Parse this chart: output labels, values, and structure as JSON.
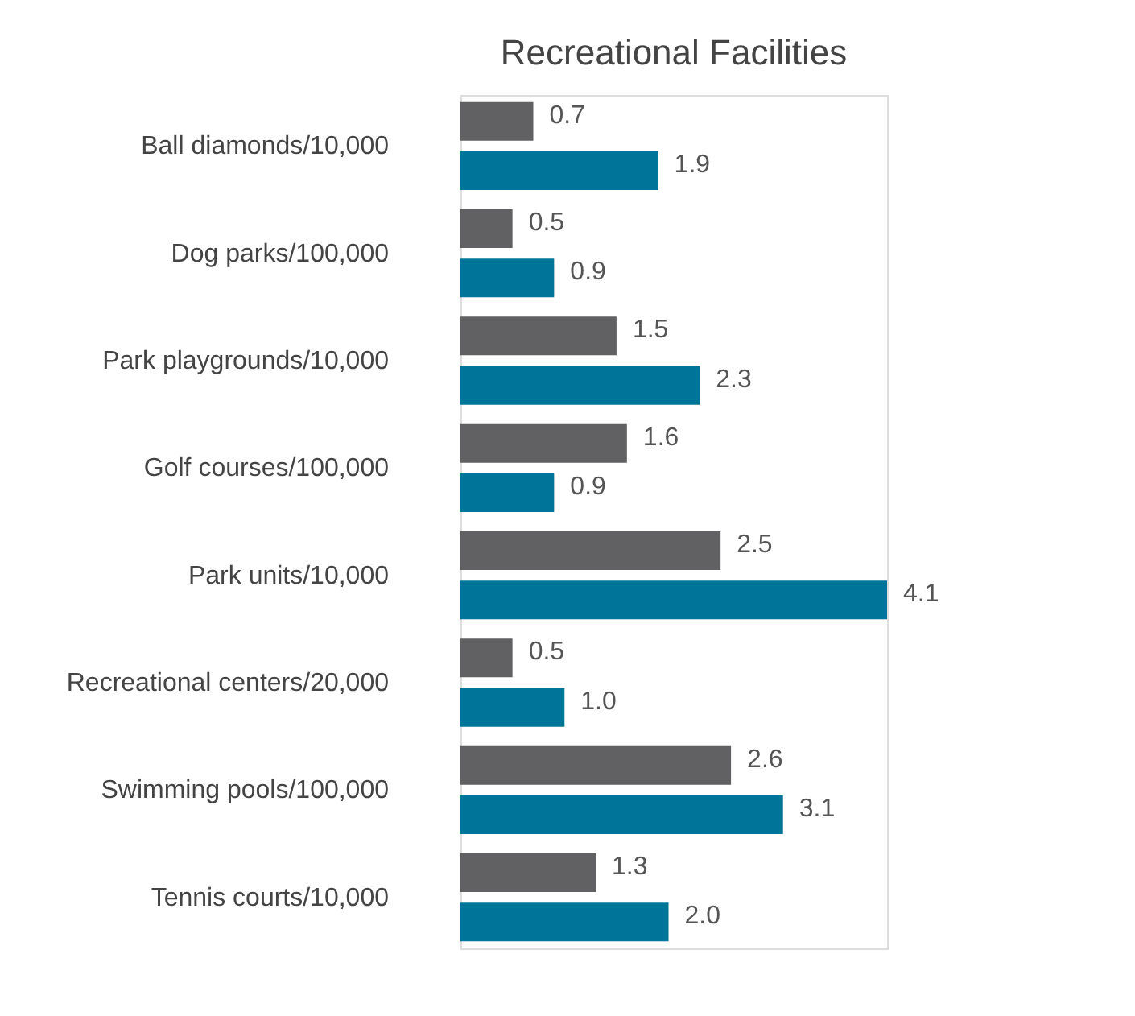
{
  "chart_data": {
    "type": "bar",
    "title": "Recreational Facilities",
    "orientation": "horizontal",
    "categories": [
      "Ball diamonds/10,000",
      "Dog parks/100,000",
      "Park playgrounds/10,000",
      "Golf courses/100,000",
      "Park units/10,000",
      "Recreational centers/20,000",
      "Swimming pools/100,000",
      "Tennis courts/10,000"
    ],
    "series": [
      {
        "color": "#616062",
        "values": [
          0.7,
          0.5,
          1.5,
          1.6,
          2.5,
          0.5,
          2.6,
          1.3
        ],
        "value_labels": [
          "0.7",
          "0.5",
          "1.5",
          "1.6",
          "2.5",
          "0.5",
          "2.6",
          "1.3"
        ]
      },
      {
        "color": "#00759a",
        "values": [
          1.9,
          0.9,
          2.3,
          0.9,
          4.1,
          1.0,
          3.1,
          2.0
        ],
        "value_labels": [
          "1.9",
          "0.9",
          "2.3",
          "0.9",
          "4.1",
          "1.0",
          "3.1",
          "2.0"
        ]
      }
    ]
  }
}
